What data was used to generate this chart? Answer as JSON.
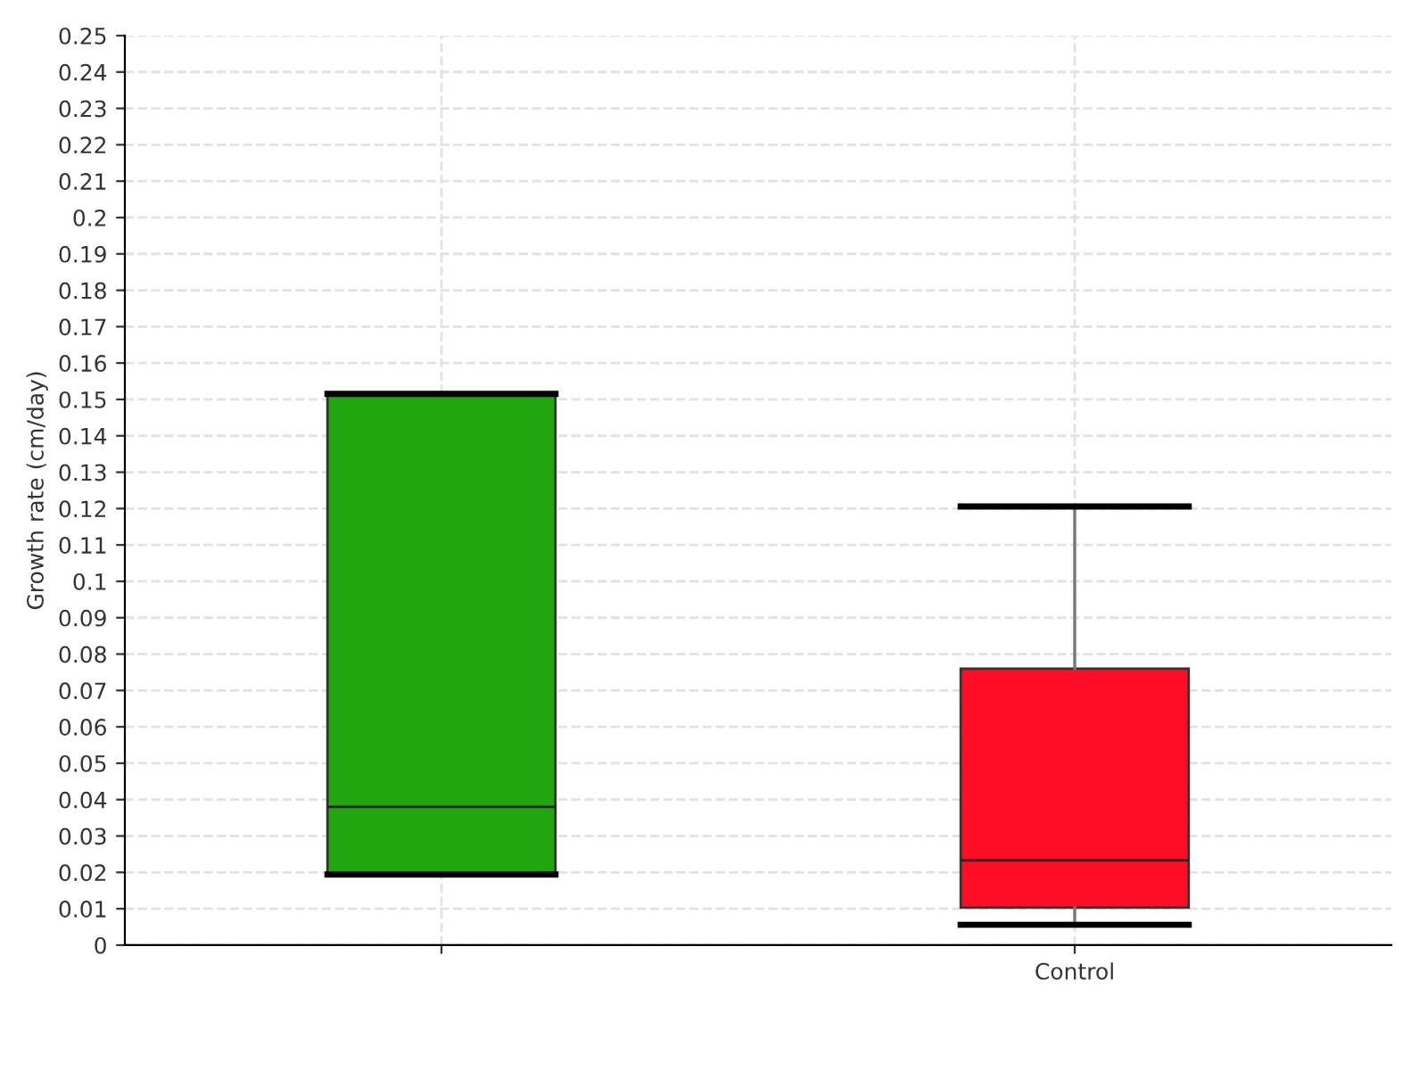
{
  "chart_data": {
    "type": "box",
    "ylabel": "Growth rate (cm/day)",
    "categories": [
      null,
      "Control"
    ],
    "colors": [
      "#22a60f",
      "#ff0c27"
    ],
    "boxes": [
      {
        "low": 0.0194,
        "q1": 0.0194,
        "median": 0.038,
        "q3": 0.1515,
        "high": 0.1515
      },
      {
        "low": 0.0056,
        "q1": 0.0103,
        "median": 0.0233,
        "q3": 0.076,
        "high": 0.1206
      }
    ],
    "ylim": [
      0,
      0.25
    ],
    "yticks": [
      0,
      0.01,
      0.02,
      0.03,
      0.04,
      0.05,
      0.06,
      0.07,
      0.08,
      0.09,
      0.1,
      0.11,
      0.12,
      0.13,
      0.14,
      0.15,
      0.16,
      0.17,
      0.18,
      0.19,
      0.2,
      0.21,
      0.22,
      0.23,
      0.24,
      0.25
    ],
    "grid": true
  }
}
